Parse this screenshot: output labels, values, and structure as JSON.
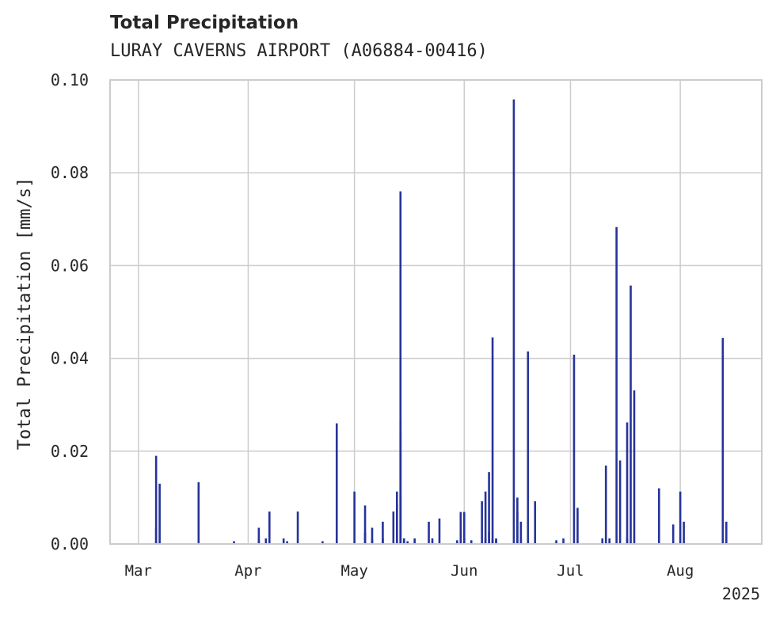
{
  "chart_data": {
    "type": "bar",
    "title": "Total Precipitation",
    "subtitle": "LURAY CAVERNS AIRPORT (A06884-00416)",
    "ylabel": "Total Precipitation [mm/s]",
    "xlabel": "",
    "year_label": "2025",
    "x_range": [
      "2025-02-21",
      "2025-08-24"
    ],
    "ylim": [
      0,
      0.1
    ],
    "yticks": [
      "0.00",
      "0.02",
      "0.04",
      "0.06",
      "0.08",
      "0.10"
    ],
    "xticks": [
      {
        "label": "Mar",
        "date": "2025-03-01"
      },
      {
        "label": "Apr",
        "date": "2025-04-01"
      },
      {
        "label": "May",
        "date": "2025-05-01"
      },
      {
        "label": "Jun",
        "date": "2025-06-01"
      },
      {
        "label": "Jul",
        "date": "2025-07-01"
      },
      {
        "label": "Aug",
        "date": "2025-08-01"
      }
    ],
    "grid": true,
    "bar_color": "#26339a",
    "series": [
      {
        "x": [
          "2025-03-06",
          "2025-03-06",
          "2025-03-07",
          "2025-03-18",
          "2025-03-28",
          "2025-04-04",
          "2025-04-04",
          "2025-04-06",
          "2025-04-07",
          "2025-04-11",
          "2025-04-12",
          "2025-04-15",
          "2025-04-22",
          "2025-04-26",
          "2025-05-01",
          "2025-05-04",
          "2025-05-04",
          "2025-05-06",
          "2025-05-06",
          "2025-05-09",
          "2025-05-09",
          "2025-05-12",
          "2025-05-13",
          "2025-05-13",
          "2025-05-14",
          "2025-05-14",
          "2025-05-14",
          "2025-05-14",
          "2025-05-15",
          "2025-05-15",
          "2025-05-15",
          "2025-05-16",
          "2025-05-18",
          "2025-05-22",
          "2025-05-23",
          "2025-05-25",
          "2025-05-30",
          "2025-05-31",
          "2025-05-31",
          "2025-06-01",
          "2025-06-01",
          "2025-06-03",
          "2025-06-06",
          "2025-06-07",
          "2025-06-07",
          "2025-06-08",
          "2025-06-08",
          "2025-06-09",
          "2025-06-09",
          "2025-06-10",
          "2025-06-10",
          "2025-06-15",
          "2025-06-16",
          "2025-06-16",
          "2025-06-17",
          "2025-06-17",
          "2025-06-19",
          "2025-06-21",
          "2025-06-27",
          "2025-06-29",
          "2025-07-02",
          "2025-07-03",
          "2025-07-10",
          "2025-07-11",
          "2025-07-12",
          "2025-07-14",
          "2025-07-15",
          "2025-07-17",
          "2025-07-17",
          "2025-07-18",
          "2025-07-19",
          "2025-07-26",
          "2025-07-30",
          "2025-08-01",
          "2025-08-02",
          "2025-08-13",
          "2025-08-14"
        ],
        "values": [
          0.0035,
          0.019,
          0.013,
          0.0133,
          0.0006,
          0.0035,
          0.0008,
          0.0012,
          0.007,
          0.0012,
          0.0006,
          0.007,
          0.0006,
          0.026,
          0.0113,
          0.0083,
          0.0024,
          0.001,
          0.0035,
          0.0048,
          0.0012,
          0.007,
          0.0085,
          0.0113,
          0.076,
          0.0105,
          0.024,
          0.0268,
          0.0012,
          0.0012,
          0.0012,
          0.0006,
          0.0012,
          0.0048,
          0.0012,
          0.0055,
          0.0008,
          0.0025,
          0.0069,
          0.0069,
          0.0012,
          0.0008,
          0.0092,
          0.0113,
          0.0012,
          0.0155,
          0.0025,
          0.0445,
          0.001,
          0.001,
          0.0012,
          0.0958,
          0.007,
          0.01,
          0.0048,
          0.0012,
          0.0415,
          0.0092,
          0.0008,
          0.0012,
          0.0408,
          0.0078,
          0.0012,
          0.0169,
          0.0012,
          0.0683,
          0.018,
          0.0262,
          0.0012,
          0.0557,
          0.0331,
          0.012,
          0.0042,
          0.0113,
          0.0048,
          0.0444,
          0.0048
        ]
      }
    ]
  }
}
